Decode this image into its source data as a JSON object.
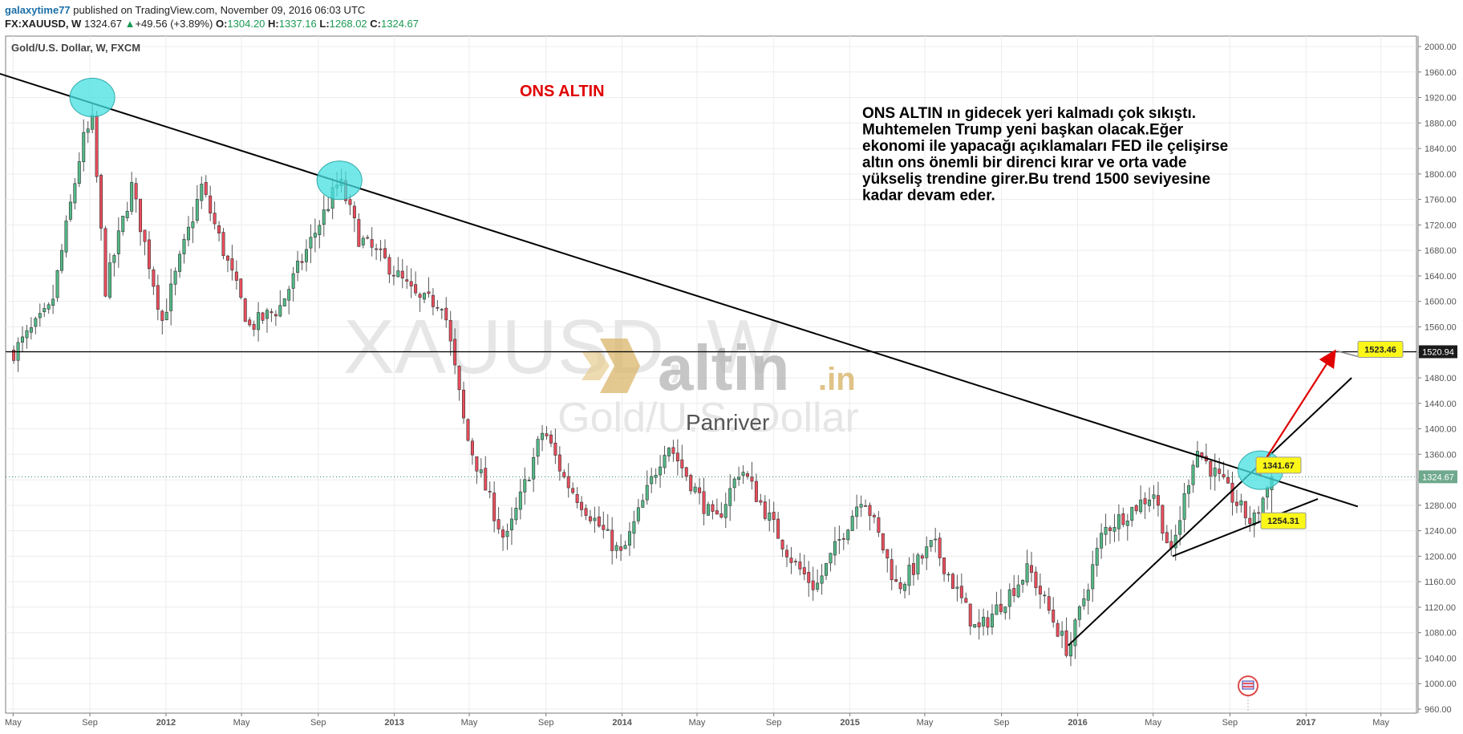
{
  "header": {
    "author": "galaxytime77",
    "published": "published on TradingView.com, November 09, 2016 06:03 UTC",
    "symbol": "FX:XAUUSD, W",
    "last": "1324.67",
    "change_arrow": "▲",
    "change": "+49.56 (+3.89%)",
    "open_label": "O:",
    "open": "1304.20",
    "high_label": "H:",
    "high": "1337.16",
    "low_label": "L:",
    "low": "1268.02",
    "close_label": "C:",
    "close": "1324.67"
  },
  "panel_title": "Gold/U.S. Dollar, W, FXCM",
  "watermarks": {
    "symbol": "XAUUSD, W",
    "name": "Gold/U.S. Dollar",
    "brand": "altin.in",
    "brand_main": "altin",
    "brand_tld": ".in",
    "author": "Panriver"
  },
  "chart_title": "ONS ALTIN",
  "commentary": [
    "ONS ALTIN ın gidecek yeri kalmadı çok sıkıştı.",
    "Muhtemelen Trump yeni başkan olacak.Eğer",
    "ekonomi ile yapacağı açıklamaları FED ile çelişirse",
    "altın ons önemli bir direnci kırar ve orta vade",
    "yükseliş trendine girer.Bu trend 1500 seviyesine",
    "kadar devam eder."
  ],
  "colors": {
    "up_candle": "#53b987",
    "down_candle": "#eb4d5c",
    "wick": "#555555",
    "circle_fill": "#45e0e0",
    "callout": "#fbf719",
    "title_red": "#e00000",
    "arrow_red": "#e00000",
    "last_price_line": "#2e8b57"
  },
  "chart_data": {
    "type": "candlestick",
    "timeframe": "W",
    "symbol": "FX:XAUUSD",
    "y_axis": {
      "min": 960,
      "max": 2000,
      "ticks": [
        "2000.00",
        "1960.00",
        "1920.00",
        "1880.00",
        "1840.00",
        "1800.00",
        "1760.00",
        "1720.00",
        "1680.00",
        "1640.00",
        "1600.00",
        "1560.00",
        "1520.00",
        "1480.00",
        "1440.00",
        "1400.00",
        "1360.00",
        "1320.00",
        "1280.00",
        "1240.00",
        "1200.00",
        "1160.00",
        "1120.00",
        "1080.00",
        "1040.00",
        "1000.00",
        "960.00"
      ]
    },
    "x_axis": {
      "labels": [
        "May",
        "Sep",
        "2012",
        "May",
        "Sep",
        "2013",
        "May",
        "Sep",
        "2014",
        "May",
        "Sep",
        "2015",
        "May",
        "Sep",
        "2016",
        "May",
        "Sep",
        "2017",
        "May"
      ],
      "dates": [
        "2011-05-01",
        "2011-09-01",
        "2012-01-01",
        "2012-05-01",
        "2012-09-01",
        "2013-01-01",
        "2013-05-01",
        "2013-09-01",
        "2014-01-01",
        "2014-05-01",
        "2014-09-01",
        "2015-01-01",
        "2015-05-01",
        "2015-09-01",
        "2016-01-01",
        "2016-05-01",
        "2016-09-01",
        "2017-01-01",
        "2017-05-01"
      ]
    },
    "anchors": [
      {
        "date": "2011-05-01",
        "price": 1520
      },
      {
        "date": "2011-07-01",
        "price": 1590
      },
      {
        "date": "2011-08-20",
        "price": 1850
      },
      {
        "date": "2011-09-05",
        "price": 1880
      },
      {
        "date": "2011-09-26",
        "price": 1620
      },
      {
        "date": "2011-11-07",
        "price": 1780
      },
      {
        "date": "2011-12-26",
        "price": 1570
      },
      {
        "date": "2012-02-27",
        "price": 1780
      },
      {
        "date": "2012-05-14",
        "price": 1560
      },
      {
        "date": "2012-07-01",
        "price": 1590
      },
      {
        "date": "2012-10-05",
        "price": 1790
      },
      {
        "date": "2012-11-05",
        "price": 1700
      },
      {
        "date": "2012-12-20",
        "price": 1660
      },
      {
        "date": "2013-02-10",
        "price": 1600
      },
      {
        "date": "2013-03-20",
        "price": 1600
      },
      {
        "date": "2013-04-12",
        "price": 1470
      },
      {
        "date": "2013-04-26",
        "price": 1390
      },
      {
        "date": "2013-06-28",
        "price": 1220
      },
      {
        "date": "2013-08-28",
        "price": 1400
      },
      {
        "date": "2013-10-01",
        "price": 1320
      },
      {
        "date": "2013-12-31",
        "price": 1200
      },
      {
        "date": "2014-03-14",
        "price": 1380
      },
      {
        "date": "2014-05-30",
        "price": 1250
      },
      {
        "date": "2014-07-10",
        "price": 1340
      },
      {
        "date": "2014-10-03",
        "price": 1190
      },
      {
        "date": "2014-11-07",
        "price": 1150
      },
      {
        "date": "2015-01-22",
        "price": 1300
      },
      {
        "date": "2015-03-18",
        "price": 1150
      },
      {
        "date": "2015-05-15",
        "price": 1220
      },
      {
        "date": "2015-07-24",
        "price": 1080
      },
      {
        "date": "2015-10-15",
        "price": 1180
      },
      {
        "date": "2015-12-17",
        "price": 1050
      },
      {
        "date": "2016-02-11",
        "price": 1240
      },
      {
        "date": "2016-05-02",
        "price": 1300
      },
      {
        "date": "2016-05-30",
        "price": 1200
      },
      {
        "date": "2016-07-08",
        "price": 1370
      },
      {
        "date": "2016-10-07",
        "price": 1250
      },
      {
        "date": "2016-11-07",
        "price": 1324.67
      }
    ],
    "lines": [
      {
        "name": "long-term-resistance",
        "from": {
          "date": "2011-04-01",
          "price": 1960
        },
        "to": {
          "date": "2017-03-25",
          "price": 1278
        }
      },
      {
        "name": "horizontal-1520",
        "price": 1520.94
      },
      {
        "name": "support-2016-a",
        "from": {
          "date": "2015-12-17",
          "price": 1060
        },
        "to": {
          "date": "2017-03-15",
          "price": 1480
        }
      },
      {
        "name": "support-2016-b",
        "from": {
          "date": "2016-06-01",
          "price": 1200
        },
        "to": {
          "date": "2017-01-20",
          "price": 1290
        }
      }
    ],
    "arrow": {
      "from": {
        "date": "2016-10-20",
        "price": 1340
      },
      "to": {
        "date": "2017-02-15",
        "price": 1520
      }
    },
    "circles": [
      {
        "date": "2011-09-05",
        "price": 1920
      },
      {
        "date": "2012-10-05",
        "price": 1790
      },
      {
        "date": "2016-10-20",
        "price": 1335
      }
    ],
    "callouts": [
      {
        "label": "1341.67",
        "price": 1341.67
      },
      {
        "label": "1254.31",
        "price": 1254.31
      },
      {
        "label": "1523.46",
        "price": 1523.46
      }
    ],
    "price_labels": [
      {
        "label": "1520.94",
        "price": 1520.94,
        "style": "dark"
      },
      {
        "label": "1324.67",
        "price": 1324.67,
        "style": "green"
      }
    ]
  }
}
